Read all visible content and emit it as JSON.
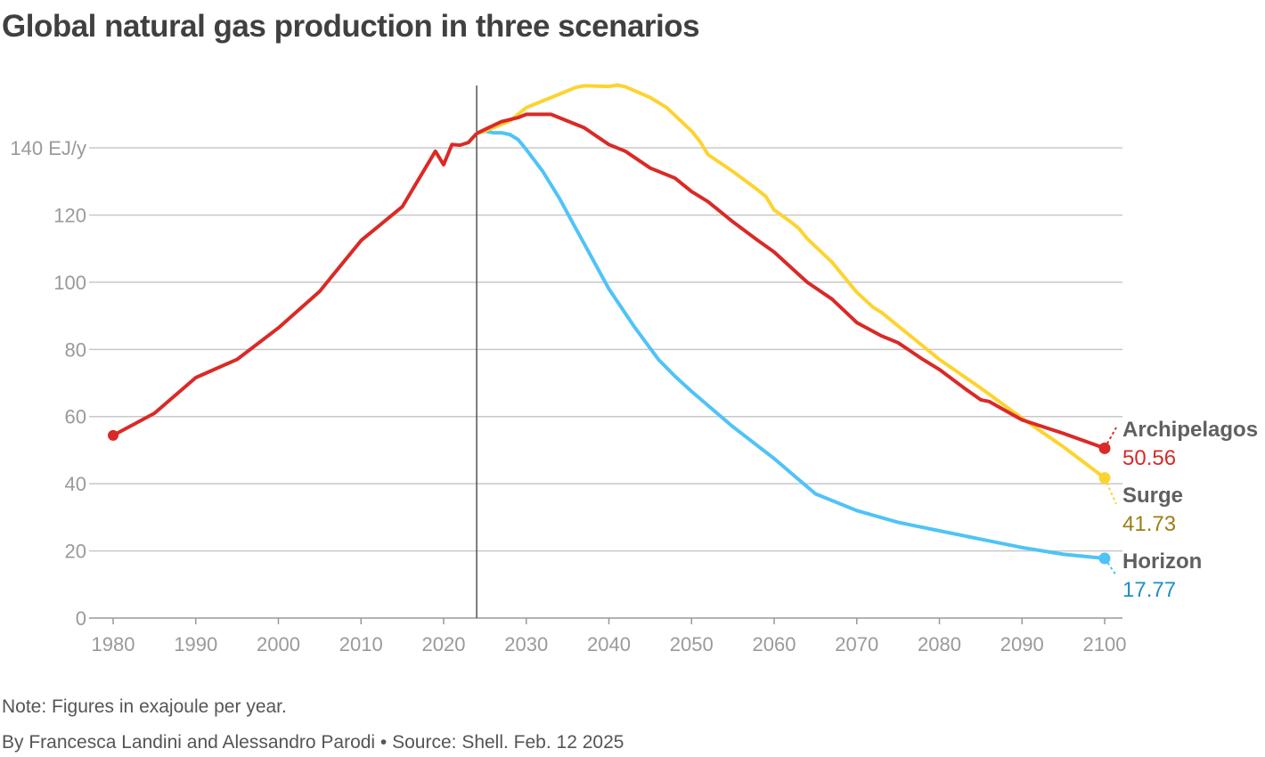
{
  "title": "Global natural gas production in three scenarios",
  "note": "Note: Figures in exajoule per year.",
  "byline": "By Francesca Landini and Alessandro Parodi • Source: Shell. Feb. 12 2025",
  "chart_data": {
    "type": "line",
    "title": "Global natural gas production in three scenarios",
    "yunit": "EJ/y",
    "xlim": [
      1980,
      2100
    ],
    "ylim": [
      0,
      160
    ],
    "xticks": [
      1980,
      1990,
      2000,
      2010,
      2020,
      2030,
      2040,
      2050,
      2060,
      2070,
      2080,
      2090,
      2100
    ],
    "yticks": [
      0,
      20,
      40,
      60,
      80,
      100,
      120,
      140
    ],
    "ytick_labels": [
      "0",
      "20",
      "40",
      "60",
      "80",
      "100",
      "120",
      "140 EJ/y"
    ],
    "grid": "horizontal",
    "divider_year": 2024,
    "legend_placement": "right end labels",
    "history": {
      "color": "#d92a27",
      "x": [
        1980,
        1985,
        1990,
        1995,
        2000,
        2005,
        2010,
        2015,
        2019,
        2020,
        2021,
        2022,
        2023,
        2024
      ],
      "y": [
        54.4,
        61,
        71.6,
        77,
        86.4,
        97.3,
        112.4,
        122.5,
        139,
        135,
        141,
        140.8,
        141.6,
        144.3
      ]
    },
    "series": [
      {
        "name": "Archipelagos",
        "end_label": "50.56",
        "color": "#d92a27",
        "label_color": "#d92a27",
        "x": [
          2024,
          2025,
          2027,
          2029,
          2030,
          2033,
          2035,
          2037,
          2040,
          2042,
          2045,
          2048,
          2050,
          2052,
          2055,
          2058,
          2060,
          2064,
          2067,
          2070,
          2073,
          2075,
          2078,
          2080,
          2083,
          2085,
          2086,
          2090,
          2095,
          2100
        ],
        "y": [
          144.3,
          145.5,
          147.8,
          149,
          150,
          150,
          148,
          146,
          141,
          139,
          134,
          131,
          127,
          124,
          118,
          112.5,
          109,
          100,
          95,
          88,
          84,
          82,
          77,
          74,
          68.5,
          65,
          64.5,
          59,
          55,
          50.56
        ]
      },
      {
        "name": "Surge",
        "end_label": "41.73",
        "color": "#fdd330",
        "label_color": "#9c7e14",
        "x": [
          2024,
          2025,
          2028,
          2030,
          2033,
          2036,
          2037,
          2040,
          2041,
          2042,
          2045,
          2047,
          2050,
          2051,
          2052,
          2055,
          2058,
          2059,
          2060,
          2062,
          2063,
          2064,
          2067,
          2070,
          2072,
          2073,
          2075,
          2080,
          2085,
          2090,
          2095,
          2100
        ],
        "y": [
          144.3,
          145,
          148,
          152,
          155,
          158,
          158.5,
          158.3,
          158.7,
          158.2,
          155,
          152,
          145,
          142,
          138,
          133,
          127.5,
          125.5,
          121.5,
          118,
          116,
          113,
          106,
          97,
          92.5,
          91,
          87,
          77,
          68.5,
          59.5,
          51,
          41.73
        ]
      },
      {
        "name": "Horizon",
        "end_label": "17.77",
        "color": "#4fc3f7",
        "label_color": "#1e8fc6",
        "x": [
          2024,
          2025,
          2026,
          2027,
          2028,
          2029,
          2030,
          2032,
          2034,
          2036,
          2038,
          2040,
          2043,
          2046,
          2048,
          2050,
          2055,
          2060,
          2065,
          2070,
          2075,
          2080,
          2085,
          2090,
          2095,
          2100
        ],
        "y": [
          144.3,
          145,
          144.5,
          144.5,
          144,
          142.5,
          139.5,
          133,
          125,
          116,
          107,
          98,
          87,
          77,
          72,
          67.5,
          57,
          47.5,
          37,
          32,
          28.5,
          26,
          23.5,
          21,
          19,
          17.77
        ]
      }
    ]
  }
}
